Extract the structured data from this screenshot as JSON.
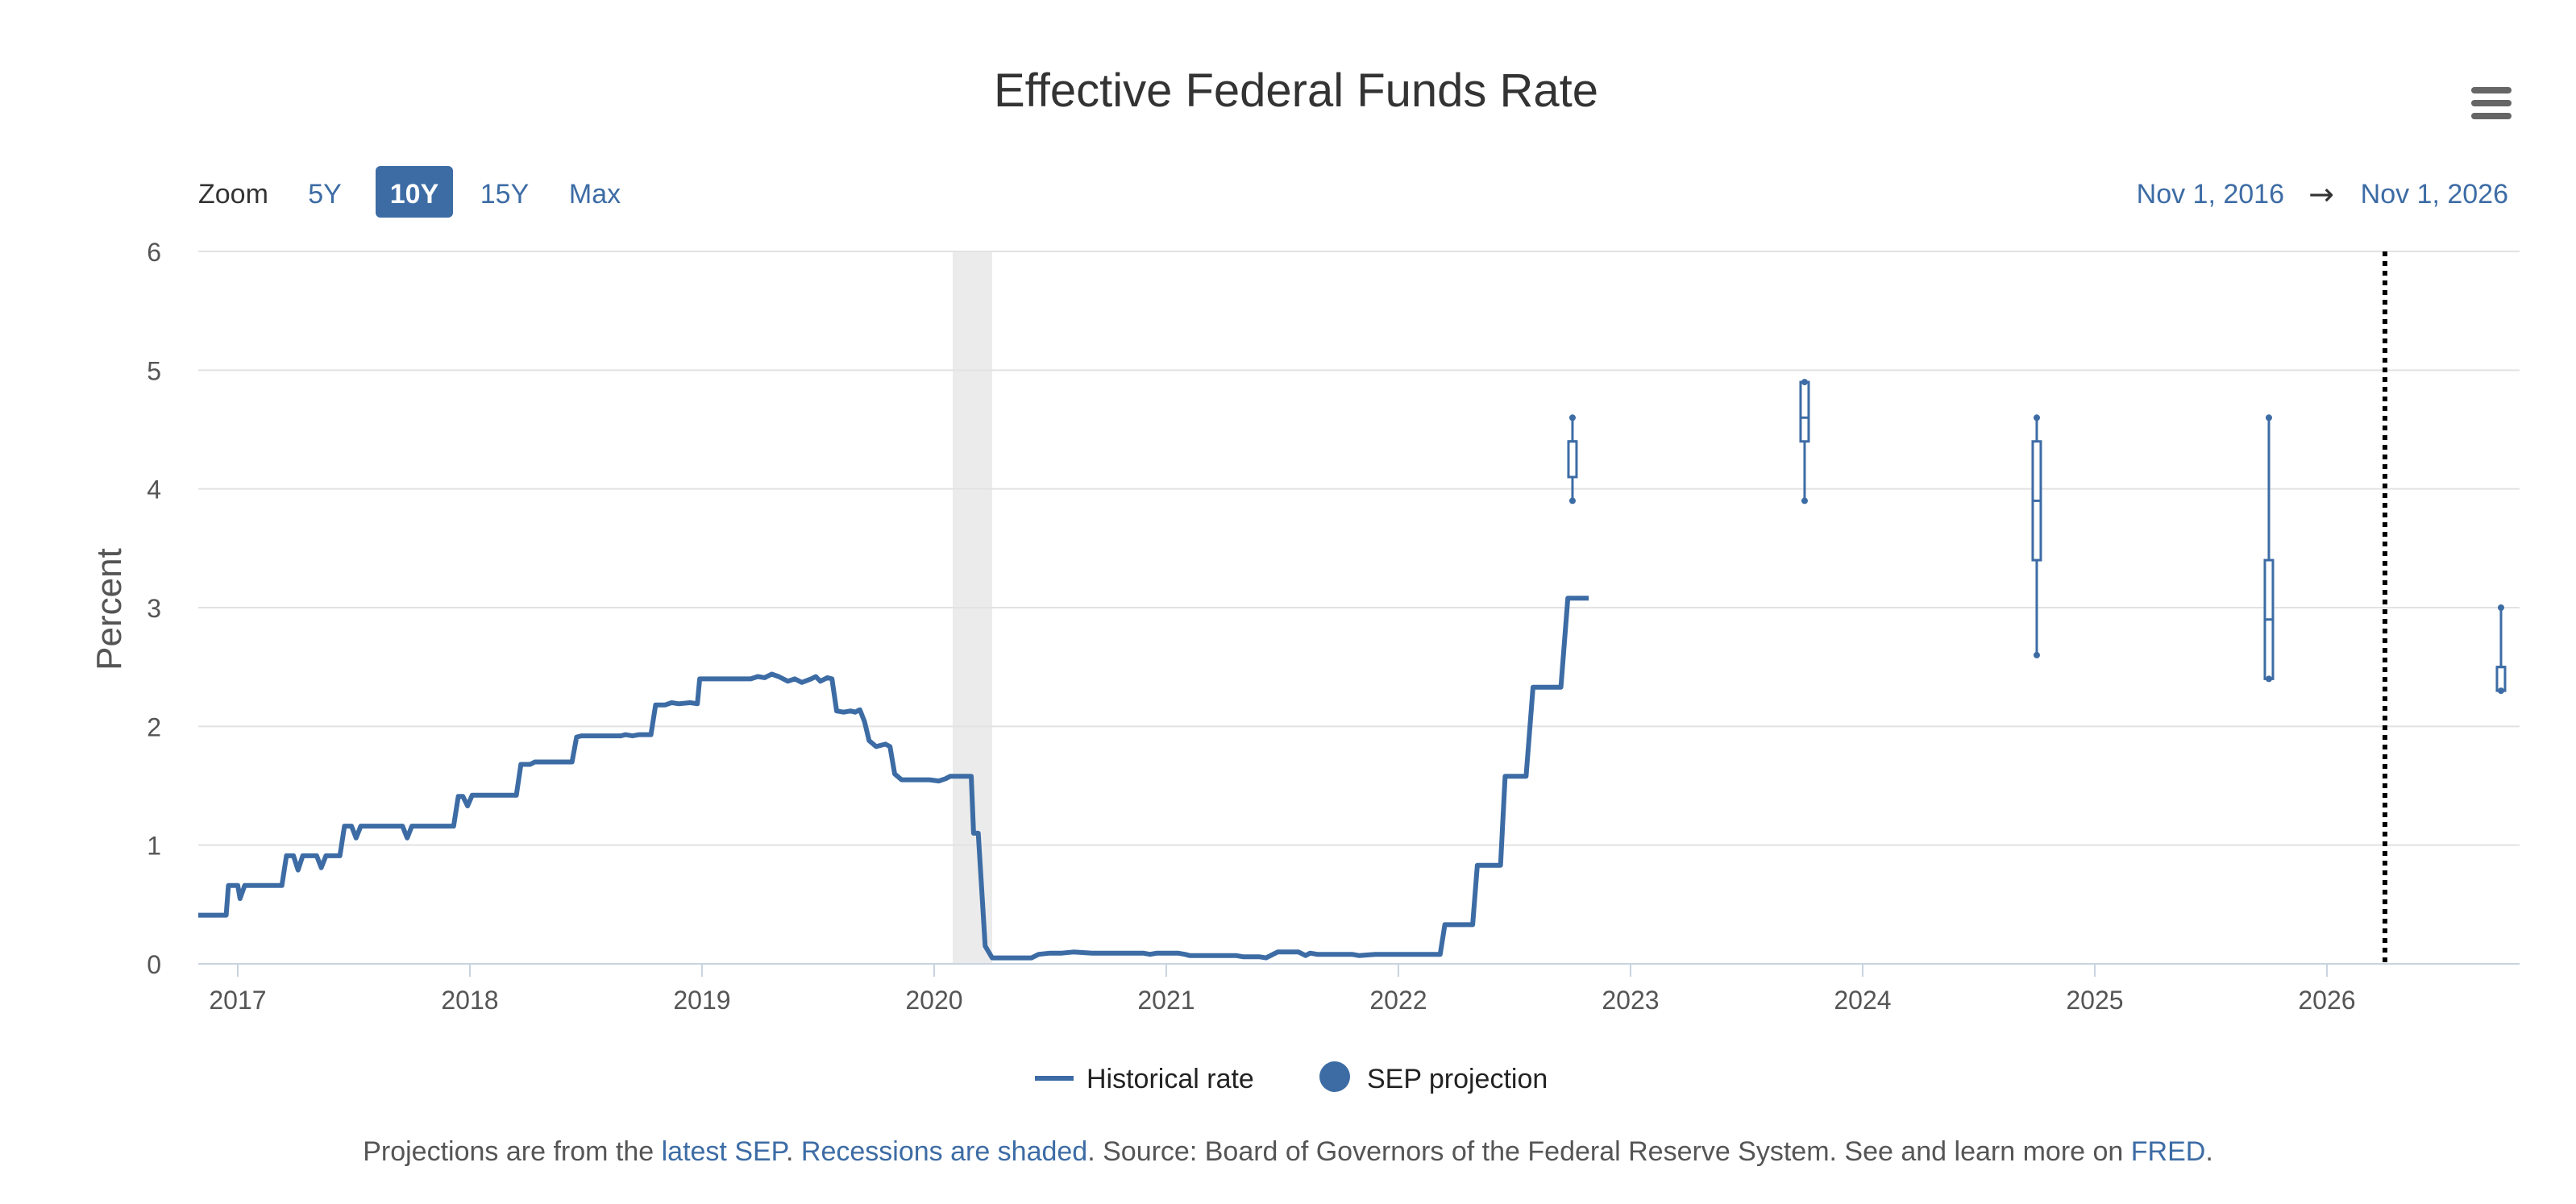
{
  "colors": {
    "series": "#3d6ca5",
    "grid": "#e2e2e2",
    "recession": "#ebebeb",
    "zoom_active_bg": "#3d6ca5",
    "text": "#333333"
  },
  "zoom": {
    "label": "Zoom",
    "buttons": [
      {
        "label": "5Y",
        "active": false
      },
      {
        "label": "10Y",
        "active": true
      },
      {
        "label": "15Y",
        "active": false
      },
      {
        "label": "Max",
        "active": false
      }
    ]
  },
  "date_range": {
    "from": "Nov 1, 2016",
    "arrow": "→",
    "to": "Nov 1, 2026"
  },
  "menu": {
    "icon": "hamburger-menu-icon"
  },
  "footer": {
    "p1": "Projections are from the ",
    "link1": "latest SEP",
    "p2": ". ",
    "link2": "Recessions are shaded",
    "p3": ". Source: Board of Governors of the Federal Reserve System. See and learn more on ",
    "link3": "FRED",
    "p4": "."
  },
  "chart_data": {
    "type": "line",
    "title": "Effective Federal Funds Rate",
    "ylabel": "Percent",
    "xlabel": "",
    "xlim": [
      2016.83,
      2026.83
    ],
    "ylim": [
      0,
      6
    ],
    "y_ticks": [
      0,
      1,
      2,
      3,
      4,
      5,
      6
    ],
    "x_ticks": [
      2017,
      2018,
      2019,
      2020,
      2021,
      2022,
      2023,
      2024,
      2025,
      2026
    ],
    "grid": true,
    "legend_position": "bottom-center",
    "legend": [
      {
        "label": "Historical rate",
        "marker": "line"
      },
      {
        "label": "SEP projection",
        "marker": "circle"
      }
    ],
    "recessions": [
      {
        "start": 2020.08,
        "end": 2020.25
      }
    ],
    "reference_line": {
      "x": 2026.25,
      "style": "dotted"
    },
    "series": [
      {
        "name": "Historical rate",
        "points": [
          [
            2016.83,
            0.41
          ],
          [
            2016.95,
            0.41
          ],
          [
            2016.96,
            0.66
          ],
          [
            2017.0,
            0.66
          ],
          [
            2017.01,
            0.55
          ],
          [
            2017.03,
            0.66
          ],
          [
            2017.19,
            0.66
          ],
          [
            2017.21,
            0.91
          ],
          [
            2017.24,
            0.91
          ],
          [
            2017.26,
            0.79
          ],
          [
            2017.28,
            0.91
          ],
          [
            2017.34,
            0.91
          ],
          [
            2017.36,
            0.81
          ],
          [
            2017.38,
            0.91
          ],
          [
            2017.44,
            0.91
          ],
          [
            2017.46,
            1.16
          ],
          [
            2017.49,
            1.16
          ],
          [
            2017.51,
            1.06
          ],
          [
            2017.53,
            1.16
          ],
          [
            2017.71,
            1.16
          ],
          [
            2017.73,
            1.06
          ],
          [
            2017.75,
            1.16
          ],
          [
            2017.93,
            1.16
          ],
          [
            2017.95,
            1.41
          ],
          [
            2017.97,
            1.41
          ],
          [
            2017.99,
            1.33
          ],
          [
            2018.01,
            1.42
          ],
          [
            2018.2,
            1.42
          ],
          [
            2018.22,
            1.68
          ],
          [
            2018.26,
            1.68
          ],
          [
            2018.28,
            1.7
          ],
          [
            2018.44,
            1.7
          ],
          [
            2018.46,
            1.91
          ],
          [
            2018.48,
            1.92
          ],
          [
            2018.65,
            1.92
          ],
          [
            2018.67,
            1.93
          ],
          [
            2018.7,
            1.92
          ],
          [
            2018.73,
            1.93
          ],
          [
            2018.78,
            1.93
          ],
          [
            2018.8,
            2.18
          ],
          [
            2018.84,
            2.18
          ],
          [
            2018.87,
            2.2
          ],
          [
            2018.9,
            2.19
          ],
          [
            2018.95,
            2.2
          ],
          [
            2018.98,
            2.19
          ],
          [
            2018.99,
            2.4
          ],
          [
            2019.1,
            2.4
          ],
          [
            2019.21,
            2.4
          ],
          [
            2019.24,
            2.42
          ],
          [
            2019.27,
            2.41
          ],
          [
            2019.3,
            2.44
          ],
          [
            2019.33,
            2.42
          ],
          [
            2019.37,
            2.38
          ],
          [
            2019.4,
            2.4
          ],
          [
            2019.43,
            2.37
          ],
          [
            2019.47,
            2.4
          ],
          [
            2019.49,
            2.42
          ],
          [
            2019.51,
            2.38
          ],
          [
            2019.54,
            2.41
          ],
          [
            2019.56,
            2.4
          ],
          [
            2019.58,
            2.13
          ],
          [
            2019.61,
            2.12
          ],
          [
            2019.64,
            2.13
          ],
          [
            2019.66,
            2.12
          ],
          [
            2019.68,
            2.14
          ],
          [
            2019.7,
            2.04
          ],
          [
            2019.72,
            1.88
          ],
          [
            2019.75,
            1.83
          ],
          [
            2019.79,
            1.85
          ],
          [
            2019.81,
            1.83
          ],
          [
            2019.83,
            1.6
          ],
          [
            2019.86,
            1.55
          ],
          [
            2019.92,
            1.55
          ],
          [
            2019.98,
            1.55
          ],
          [
            2020.02,
            1.54
          ],
          [
            2020.05,
            1.56
          ],
          [
            2020.07,
            1.58
          ],
          [
            2020.16,
            1.58
          ],
          [
            2020.17,
            1.1
          ],
          [
            2020.19,
            1.1
          ],
          [
            2020.22,
            0.15
          ],
          [
            2020.25,
            0.05
          ],
          [
            2020.42,
            0.05
          ],
          [
            2020.45,
            0.08
          ],
          [
            2020.5,
            0.09
          ],
          [
            2020.55,
            0.09
          ],
          [
            2020.6,
            0.1
          ],
          [
            2020.68,
            0.09
          ],
          [
            2020.9,
            0.09
          ],
          [
            2020.93,
            0.08
          ],
          [
            2020.96,
            0.09
          ],
          [
            2021.05,
            0.09
          ],
          [
            2021.08,
            0.08
          ],
          [
            2021.1,
            0.07
          ],
          [
            2021.3,
            0.07
          ],
          [
            2021.33,
            0.06
          ],
          [
            2021.4,
            0.06
          ],
          [
            2021.43,
            0.05
          ],
          [
            2021.46,
            0.08
          ],
          [
            2021.48,
            0.1
          ],
          [
            2021.57,
            0.1
          ],
          [
            2021.6,
            0.07
          ],
          [
            2021.62,
            0.09
          ],
          [
            2021.65,
            0.08
          ],
          [
            2021.8,
            0.08
          ],
          [
            2021.83,
            0.07
          ],
          [
            2021.9,
            0.08
          ],
          [
            2022.18,
            0.08
          ],
          [
            2022.2,
            0.33
          ],
          [
            2022.32,
            0.33
          ],
          [
            2022.34,
            0.83
          ],
          [
            2022.44,
            0.83
          ],
          [
            2022.46,
            1.58
          ],
          [
            2022.55,
            1.58
          ],
          [
            2022.58,
            2.33
          ],
          [
            2022.7,
            2.33
          ],
          [
            2022.73,
            3.08
          ],
          [
            2022.82,
            3.08
          ]
        ]
      }
    ],
    "sep_projections": [
      {
        "x": 2022.75,
        "min": 3.9,
        "q1": 4.1,
        "median": 4.4,
        "q3": 4.4,
        "max": 4.6
      },
      {
        "x": 2023.75,
        "min": 3.9,
        "q1": 4.4,
        "median": 4.6,
        "q3": 4.9,
        "max": 4.9
      },
      {
        "x": 2024.75,
        "min": 2.6,
        "q1": 3.4,
        "median": 3.9,
        "q3": 4.4,
        "max": 4.6
      },
      {
        "x": 2025.75,
        "min": 2.4,
        "q1": 2.4,
        "median": 2.9,
        "q3": 3.4,
        "max": 4.6
      },
      {
        "x": 2026.75,
        "min": 2.3,
        "q1": 2.3,
        "median": 2.5,
        "q3": 2.5,
        "max": 3.0
      }
    ]
  }
}
